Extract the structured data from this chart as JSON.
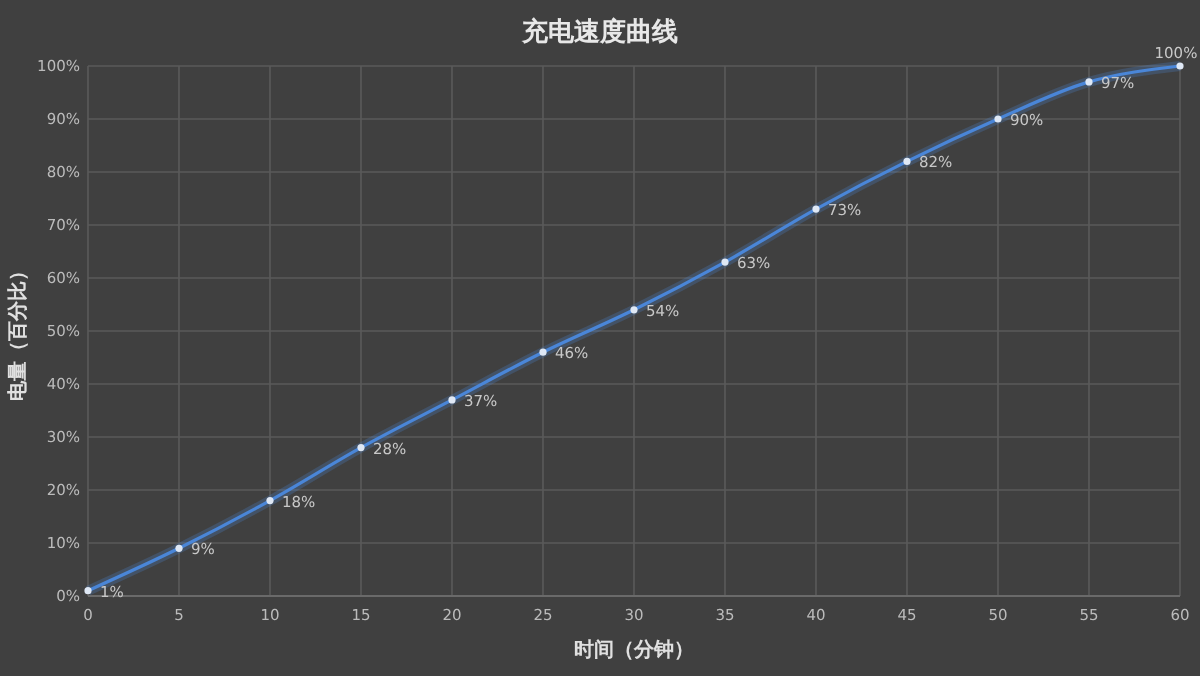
{
  "chart_data": {
    "type": "line",
    "title": "充电速度曲线",
    "xlabel": "时间（分钟）",
    "ylabel": "电量（百分比）",
    "x": [
      0,
      5,
      10,
      15,
      20,
      25,
      30,
      35,
      40,
      45,
      50,
      55,
      60
    ],
    "series": [
      {
        "color": "#4a86d8",
        "values": [
          1,
          9,
          18,
          28,
          37,
          46,
          54,
          63,
          73,
          82,
          90,
          97,
          100
        ],
        "value_labels": [
          "1%",
          "9%",
          "18%",
          "28%",
          "37%",
          "46%",
          "54%",
          "63%",
          "73%",
          "82%",
          "90%",
          "97%",
          "100%"
        ]
      }
    ],
    "xlim": [
      0,
      60
    ],
    "xticks": [
      0,
      5,
      10,
      15,
      20,
      25,
      30,
      35,
      40,
      45,
      50,
      55,
      60
    ],
    "ylim": [
      0,
      100
    ],
    "yticks": [
      {
        "value": 0,
        "label": "0%"
      },
      {
        "value": 10,
        "label": "10%"
      },
      {
        "value": 20,
        "label": "20%"
      },
      {
        "value": 30,
        "label": "30%"
      },
      {
        "value": 40,
        "label": "40%"
      },
      {
        "value": 50,
        "label": "50%"
      },
      {
        "value": 60,
        "label": "60%"
      },
      {
        "value": 70,
        "label": "70%"
      },
      {
        "value": 80,
        "label": "80%"
      },
      {
        "value": 90,
        "label": "90%"
      },
      {
        "value": 100,
        "label": "100%"
      }
    ],
    "grid": true,
    "marker": "circle",
    "line_style": "solid"
  }
}
